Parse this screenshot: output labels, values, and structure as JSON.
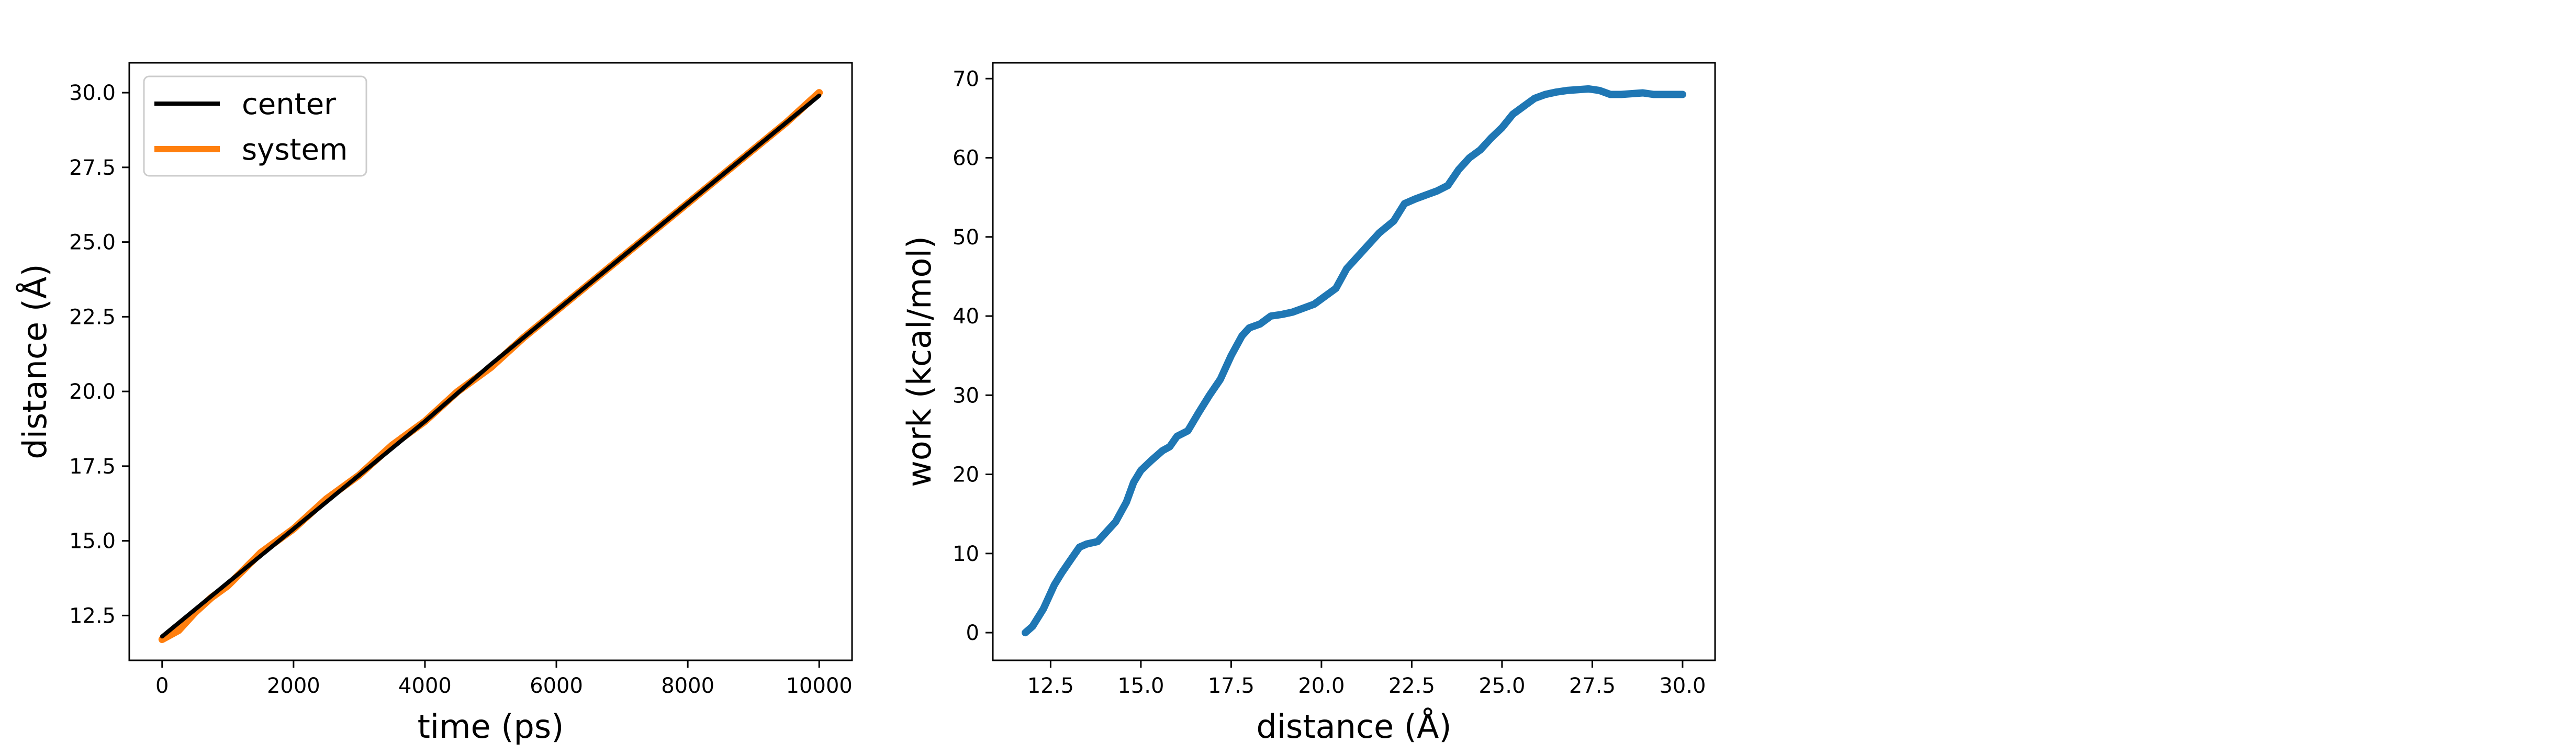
{
  "chart_data": [
    {
      "type": "line",
      "title": "",
      "xlabel": "time (ps)",
      "ylabel": "distance (Å)",
      "xlim": [
        -500,
        10500
      ],
      "ylim": [
        11.0,
        31.0
      ],
      "xticks": [
        0,
        2000,
        4000,
        6000,
        8000,
        10000
      ],
      "yticks": [
        12.5,
        15.0,
        17.5,
        20.0,
        22.5,
        25.0,
        27.5,
        30.0
      ],
      "xtick_labels": [
        "0",
        "2000",
        "4000",
        "6000",
        "8000",
        "10000"
      ],
      "ytick_labels": [
        "12.5",
        "15.0",
        "17.5",
        "20.0",
        "22.5",
        "25.0",
        "27.5",
        "30.0"
      ],
      "grid": false,
      "legend_position": "upper-left",
      "series": [
        {
          "name": "center",
          "color": "#000000",
          "x": [
            0,
            1000,
            2000,
            3000,
            4000,
            5000,
            6000,
            7000,
            8000,
            9000,
            10000
          ],
          "y": [
            11.8,
            13.6,
            15.4,
            17.2,
            19.0,
            20.9,
            22.7,
            24.5,
            26.3,
            28.1,
            29.9
          ]
        },
        {
          "name": "system",
          "color": "#ff7f0e",
          "x": [
            0,
            250,
            500,
            750,
            1000,
            1500,
            2000,
            2500,
            3000,
            3500,
            4000,
            4500,
            5000,
            5500,
            6000,
            6500,
            7000,
            7500,
            8000,
            8500,
            9000,
            9500,
            10000
          ],
          "y": [
            11.7,
            12.0,
            12.6,
            13.1,
            13.5,
            14.6,
            15.4,
            16.4,
            17.2,
            18.2,
            19.0,
            20.0,
            20.8,
            21.8,
            22.7,
            23.6,
            24.5,
            25.4,
            26.3,
            27.2,
            28.1,
            29.0,
            30.0
          ]
        }
      ]
    },
    {
      "type": "line",
      "title": "",
      "xlabel": "distance (Å)",
      "ylabel": "work (kcal/mol)",
      "xlim": [
        10.9,
        30.9
      ],
      "ylim": [
        -3.5,
        72.0
      ],
      "xticks": [
        12.5,
        15.0,
        17.5,
        20.0,
        22.5,
        25.0,
        27.5,
        30.0
      ],
      "yticks": [
        0,
        10,
        20,
        30,
        40,
        50,
        60,
        70
      ],
      "xtick_labels": [
        "12.5",
        "15.0",
        "17.5",
        "20.0",
        "22.5",
        "25.0",
        "27.5",
        "30.0"
      ],
      "ytick_labels": [
        "0",
        "10",
        "20",
        "30",
        "40",
        "50",
        "60",
        "70"
      ],
      "grid": false,
      "series": [
        {
          "name": "",
          "color": "#1f77b4",
          "x": [
            11.8,
            12.0,
            12.3,
            12.6,
            12.8,
            13.1,
            13.3,
            13.5,
            13.8,
            14.0,
            14.3,
            14.6,
            14.8,
            15.0,
            15.3,
            15.6,
            15.8,
            16.0,
            16.3,
            16.6,
            16.9,
            17.2,
            17.5,
            17.8,
            18.0,
            18.3,
            18.6,
            18.9,
            19.2,
            19.5,
            19.8,
            20.1,
            20.4,
            20.7,
            21.0,
            21.3,
            21.6,
            22.0,
            22.3,
            22.6,
            22.9,
            23.2,
            23.5,
            23.8,
            24.1,
            24.4,
            24.7,
            25.0,
            25.3,
            25.6,
            25.9,
            26.2,
            26.5,
            26.8,
            27.1,
            27.4,
            27.7,
            28.0,
            28.3,
            28.6,
            28.9,
            29.2,
            29.5,
            29.8,
            30.0
          ],
          "y": [
            0,
            0.8,
            3.0,
            6.0,
            7.5,
            9.5,
            10.8,
            11.2,
            11.5,
            12.5,
            14.0,
            16.5,
            19.0,
            20.5,
            21.8,
            23.0,
            23.5,
            24.8,
            25.5,
            27.8,
            30.0,
            32.0,
            35.0,
            37.5,
            38.5,
            39.0,
            40.0,
            40.2,
            40.5,
            41.0,
            41.5,
            42.5,
            43.5,
            46.0,
            47.5,
            49.0,
            50.5,
            52.0,
            54.2,
            54.8,
            55.3,
            55.8,
            56.5,
            58.5,
            60.0,
            61.0,
            62.5,
            63.8,
            65.5,
            66.5,
            67.5,
            68.0,
            68.3,
            68.5,
            68.6,
            68.7,
            68.5,
            68.0,
            68.0,
            68.1,
            68.2,
            68.0,
            68.0,
            68.0,
            68.0
          ]
        }
      ]
    }
  ]
}
